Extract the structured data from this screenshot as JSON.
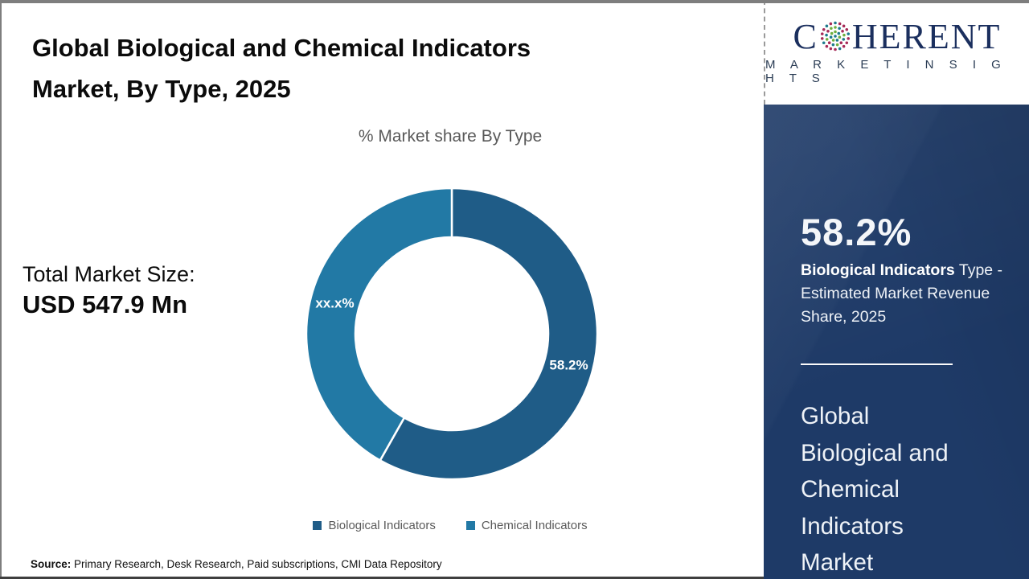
{
  "header": {
    "title_lines": [
      "Global Biological and Chemical Indicators",
      "Market, By Type, 2025"
    ]
  },
  "market_size": {
    "label": "Total Market Size:",
    "value": "USD 547.9 Mn"
  },
  "source": {
    "label": "Source:",
    "text": " Primary Research, Desk Research, Paid subscriptions, CMI Data Repository"
  },
  "logo": {
    "word_start": "C",
    "word_end": "HERENT",
    "tagline": "M A R K E T  I N S I G H T S",
    "text_color": "#1b2f5e",
    "tagline_color": "#2b3d55",
    "globe_colors": [
      "#1d7a8c",
      "#6faf3f",
      "#a62b58"
    ]
  },
  "sidebar": {
    "background_color": "#1e3a67",
    "stat_value": "58.2%",
    "stat_desc_bold": "Biological Indicators",
    "stat_desc_rest": " Type - Estimated Market Revenue Share, 2025",
    "market_name_lines": [
      "Global",
      "Biological and",
      "Chemical",
      "Indicators",
      "Market"
    ]
  },
  "chart_data": {
    "type": "pie",
    "subtype": "donut",
    "title": "% Market share By Type",
    "start_angle_deg": 0,
    "direction": "clockwise",
    "inner_radius_ratio": 0.665,
    "label_color": "#ffffff",
    "legend_position": "bottom",
    "slices": [
      {
        "label": "Biological Indicators",
        "value": 58.2,
        "display_label": "58.2%",
        "color": "#1f5c87"
      },
      {
        "label": "Chemical Indicators",
        "value": 41.8,
        "display_label": "xx.x%",
        "color": "#2279a5"
      }
    ]
  }
}
